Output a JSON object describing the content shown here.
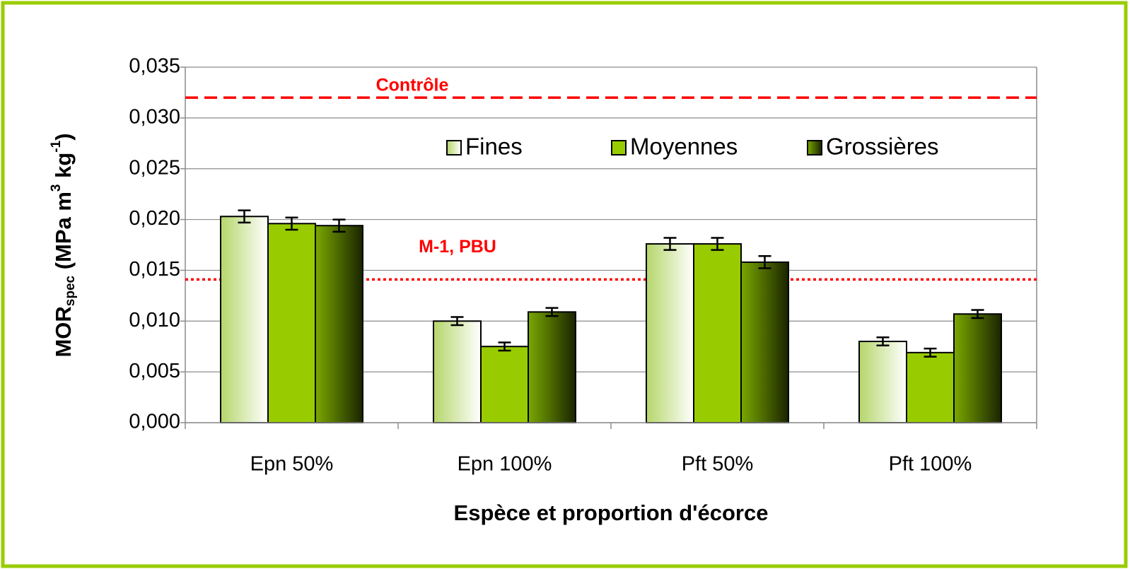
{
  "chart_data": {
    "type": "bar",
    "xlabel": "Espèce et proportion d'écorce",
    "ylabel": {
      "main": "MOR",
      "sub": "spec",
      "unit": " (MPa m",
      "sup1": "3",
      "unit2": " kg",
      "sup2": "-1",
      "close": ")"
    },
    "categories": [
      "Epn 50%",
      "Epn 100%",
      "Pft 50%",
      "Pft 100%"
    ],
    "series": [
      {
        "name": "Fines",
        "color": "#b5d66a",
        "values": [
          0.0203,
          0.01,
          0.0176,
          0.008
        ],
        "errors": [
          0.0006,
          0.0004,
          0.0006,
          0.0004
        ]
      },
      {
        "name": "Moyennes",
        "color": "#99cc00",
        "values": [
          0.0196,
          0.0075,
          0.0176,
          0.0069
        ],
        "errors": [
          0.0006,
          0.0004,
          0.0006,
          0.0004
        ]
      },
      {
        "name": "Grossières",
        "color": "#7aa800",
        "values": [
          0.0194,
          0.0109,
          0.0158,
          0.0107
        ],
        "errors": [
          0.0006,
          0.0004,
          0.0006,
          0.0004
        ]
      }
    ],
    "ylim": [
      0,
      0.035
    ],
    "yticks": [
      {
        "value": 0,
        "label": "0,000"
      },
      {
        "value": 0.005,
        "label": "0,005"
      },
      {
        "value": 0.01,
        "label": "0,010"
      },
      {
        "value": 0.015,
        "label": "0,015"
      },
      {
        "value": 0.02,
        "label": "0,020"
      },
      {
        "value": 0.025,
        "label": "0,025"
      },
      {
        "value": 0.03,
        "label": "0,030"
      },
      {
        "value": 0.035,
        "label": "0,035"
      }
    ],
    "grid": true,
    "legend": "top",
    "reference_lines": [
      {
        "label": "Contrôle",
        "value": 0.032,
        "color": "#ff0000",
        "style": "dashed"
      },
      {
        "label": "M-1, PBU",
        "value": 0.0141,
        "color": "#ff0000",
        "style": "dotted"
      }
    ]
  }
}
